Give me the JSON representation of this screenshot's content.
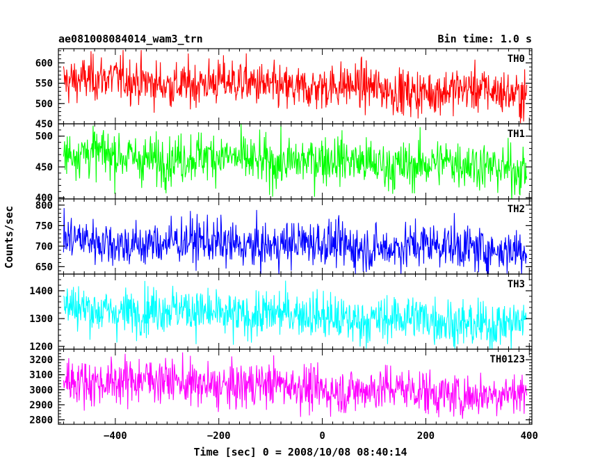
{
  "header": {
    "title": "ae081008084014_wam3_trn",
    "bin_time": "Bin time: 1.0 s"
  },
  "chart_data": {
    "type": "line",
    "xlabel": "Time [sec] 0 = 2008/10/08 08:40:14",
    "ylabel": "Counts/sec",
    "xlim": [
      -510,
      405
    ],
    "x_range": [
      -500,
      395
    ],
    "x_ticks": [
      -400,
      -200,
      0,
      200,
      400
    ],
    "x_tick_labels": [
      "−400",
      "−200",
      "0",
      "200",
      "400"
    ],
    "panels": [
      {
        "name": "TH0",
        "color": "#ff0000",
        "ylim": [
          450,
          635
        ],
        "y_ticks": [
          450,
          500,
          550,
          600
        ],
        "y_tick_labels": [
          "450",
          "500",
          "550",
          "600"
        ],
        "level_start": 560,
        "level_end": 525,
        "noise": 28
      },
      {
        "name": "TH1",
        "color": "#00ff00",
        "ylim": [
          398,
          520
        ],
        "y_ticks": [
          400,
          450,
          500
        ],
        "y_tick_labels": [
          "400",
          "450",
          "500"
        ],
        "level_start": 470,
        "level_end": 450,
        "noise": 20
      },
      {
        "name": "TH2",
        "color": "#0000ff",
        "ylim": [
          632,
          815
        ],
        "y_ticks": [
          650,
          700,
          750,
          800
        ],
        "y_tick_labels": [
          "650",
          "700",
          "750",
          "800"
        ],
        "level_start": 712,
        "level_end": 695,
        "noise": 28
      },
      {
        "name": "TH3",
        "color": "#00ffff",
        "ylim": [
          1190,
          1460
        ],
        "y_ticks": [
          1200,
          1300,
          1400
        ],
        "y_tick_labels": [
          "1200",
          "1300",
          "1400"
        ],
        "level_start": 1340,
        "level_end": 1280,
        "noise": 42
      },
      {
        "name": "TH0123",
        "color": "#ff00ff",
        "ylim": [
          2770,
          3270
        ],
        "y_ticks": [
          2800,
          2900,
          3000,
          3100,
          3200
        ],
        "y_tick_labels": [
          "2800",
          "2900",
          "3000",
          "3100",
          "3200"
        ],
        "level_start": 3075,
        "level_end": 2960,
        "noise": 75
      }
    ]
  }
}
